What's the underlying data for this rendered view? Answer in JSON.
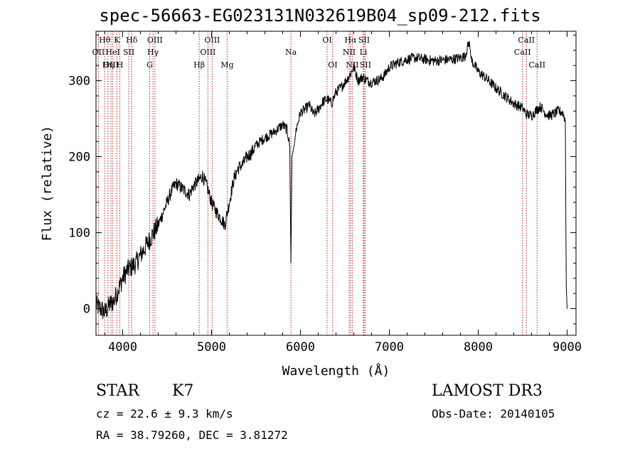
{
  "title": "spec-56663-EG023131N032619B04_sp09-212.fits",
  "footer": {
    "class": "STAR",
    "subclass": "K7",
    "survey": "LAMOST DR3",
    "cz": "cz = 22.6 ± 9.3 km/s",
    "obs_date": "Obs-Date: 20140105",
    "radec": "RA =  38.79260, DEC =   3.81272"
  },
  "chart_data": {
    "type": "line",
    "title": "spec-56663-EG023131N032619B04_sp09-212.fits",
    "xlabel": "Wavelength (Å)",
    "ylabel": "Flux (relative)",
    "xlim": [
      3700,
      9100
    ],
    "ylim": [
      -35,
      365
    ],
    "x_ticks": [
      4000,
      5000,
      6000,
      7000,
      8000,
      9000
    ],
    "y_ticks": [
      0,
      100,
      200,
      300
    ],
    "grid": false,
    "legend": "none",
    "colors": {
      "spectrum": "#000000",
      "lines": "#b22222",
      "labels": "#000000"
    },
    "series": [
      {
        "x": [
          3700,
          3750,
          3800,
          3850,
          3900,
          3950,
          4000,
          4050,
          4100,
          4150,
          4200,
          4250,
          4300,
          4350,
          4400,
          4450,
          4500,
          4550,
          4600,
          4650,
          4700,
          4750,
          4800,
          4850,
          4900,
          4950,
          5000,
          5050,
          5100,
          5150,
          5200,
          5250,
          5300,
          5350,
          5400,
          5450,
          5500,
          5600,
          5700,
          5800,
          5850,
          5880,
          5893,
          5905,
          5930,
          5950,
          6000,
          6050,
          6100,
          6150,
          6200,
          6250,
          6300,
          6350,
          6400,
          6450,
          6500,
          6560,
          6600,
          6650,
          6700,
          6750,
          6800,
          6850,
          6900,
          6950,
          7000,
          7100,
          7200,
          7300,
          7400,
          7500,
          7600,
          7700,
          7800,
          7850,
          7900,
          7920,
          7950,
          8000,
          8100,
          8200,
          8300,
          8400,
          8500,
          8540,
          8600,
          8660,
          8700,
          8750,
          8800,
          8850,
          8900,
          8950,
          8980,
          8990,
          9000
        ],
        "y": [
          5,
          0,
          -5,
          5,
          10,
          25,
          40,
          50,
          55,
          60,
          70,
          80,
          90,
          100,
          110,
          125,
          140,
          155,
          165,
          160,
          155,
          150,
          162,
          168,
          175,
          160,
          140,
          128,
          120,
          110,
          140,
          170,
          185,
          190,
          200,
          205,
          215,
          225,
          232,
          242,
          235,
          215,
          60,
          200,
          215,
          235,
          258,
          262,
          268,
          255,
          262,
          272,
          276,
          270,
          285,
          290,
          298,
          308,
          318,
          300,
          305,
          300,
          298,
          300,
          302,
          308,
          318,
          324,
          328,
          330,
          328,
          326,
          327,
          328,
          330,
          332,
          352,
          328,
          322,
          312,
          302,
          290,
          280,
          270,
          264,
          256,
          254,
          262,
          266,
          258,
          254,
          256,
          260,
          258,
          248,
          30,
          0
        ]
      }
    ],
    "lines": [
      {
        "name": "Hθ",
        "wavelength": 3798,
        "row": 0
      },
      {
        "name": "K",
        "wavelength": 3934,
        "row": 0
      },
      {
        "name": "Hδ",
        "wavelength": 4102,
        "row": 0
      },
      {
        "name": "OIII",
        "wavelength": 4363,
        "row": 0
      },
      {
        "name": "OIII",
        "wavelength": 5007,
        "row": 0
      },
      {
        "name": "OI",
        "wavelength": 6300,
        "row": 0
      },
      {
        "name": "Hα",
        "wavelength": 6563,
        "row": 0
      },
      {
        "name": "SII",
        "wavelength": 6716,
        "row": 0
      },
      {
        "name": "CaII",
        "wavelength": 8542,
        "row": 0
      },
      {
        "name": "OII",
        "wavelength": 3727,
        "row": 1
      },
      {
        "name": "HeI",
        "wavelength": 3889,
        "row": 1
      },
      {
        "name": "SII",
        "wavelength": 4069,
        "row": 1
      },
      {
        "name": "Hγ",
        "wavelength": 4341,
        "row": 1
      },
      {
        "name": "OIII",
        "wavelength": 4959,
        "row": 1
      },
      {
        "name": "Na",
        "wavelength": 5893,
        "row": 1
      },
      {
        "name": "NII",
        "wavelength": 6548,
        "row": 1
      },
      {
        "name": "Li",
        "wavelength": 6708,
        "row": 1
      },
      {
        "name": "CaII",
        "wavelength": 8498,
        "row": 1
      },
      {
        "name": "OIII",
        "wavelength": 3869,
        "row": 2
      },
      {
        "name": "Hη",
        "wavelength": 3835,
        "row": 2
      },
      {
        "name": "H",
        "wavelength": 3968,
        "row": 2
      },
      {
        "name": "G",
        "wavelength": 4304,
        "row": 2
      },
      {
        "name": "Hβ",
        "wavelength": 4861,
        "row": 2
      },
      {
        "name": "Mg",
        "wavelength": 5175,
        "row": 2
      },
      {
        "name": "OI",
        "wavelength": 6363,
        "row": 2
      },
      {
        "name": "NII",
        "wavelength": 6583,
        "row": 2
      },
      {
        "name": "SII",
        "wavelength": 6731,
        "row": 2
      },
      {
        "name": "CaII",
        "wavelength": 8662,
        "row": 2
      }
    ]
  }
}
